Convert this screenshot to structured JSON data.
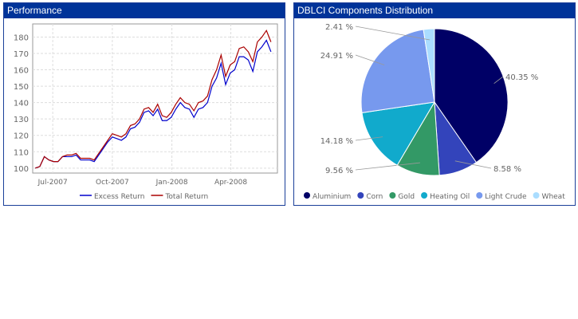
{
  "chart_data": [
    {
      "type": "line",
      "title": "Performance",
      "ylim": [
        97,
        188
      ],
      "yticks": [
        100,
        110,
        120,
        130,
        140,
        150,
        160,
        170,
        180
      ],
      "xticks": [
        {
          "label": "Jul-2007",
          "date": "2007-07-01"
        },
        {
          "label": "Oct-2007",
          "date": "2007-10-01"
        },
        {
          "label": "Jan-2008",
          "date": "2008-01-01"
        },
        {
          "label": "Apr-2008",
          "date": "2008-04-01"
        }
      ],
      "xlim": [
        "2007-05-31",
        "2008-06-12"
      ],
      "grid": true,
      "legend": "bottom",
      "dates": [
        "2007-06-04",
        "2007-06-11",
        "2007-06-18",
        "2007-06-25",
        "2007-07-02",
        "2007-07-09",
        "2007-07-16",
        "2007-07-23",
        "2007-07-30",
        "2007-08-06",
        "2007-08-13",
        "2007-08-20",
        "2007-08-27",
        "2007-09-03",
        "2007-09-10",
        "2007-09-17",
        "2007-09-24",
        "2007-10-01",
        "2007-10-08",
        "2007-10-15",
        "2007-10-22",
        "2007-10-29",
        "2007-11-05",
        "2007-11-12",
        "2007-11-19",
        "2007-11-26",
        "2007-12-03",
        "2007-12-10",
        "2007-12-17",
        "2007-12-24",
        "2007-12-31",
        "2008-01-07",
        "2008-01-14",
        "2008-01-21",
        "2008-01-28",
        "2008-02-04",
        "2008-02-11",
        "2008-02-18",
        "2008-02-25",
        "2008-03-03",
        "2008-03-10",
        "2008-03-17",
        "2008-03-24",
        "2008-03-31",
        "2008-04-07",
        "2008-04-14",
        "2008-04-21",
        "2008-04-28",
        "2008-05-05",
        "2008-05-12",
        "2008-05-19",
        "2008-05-26",
        "2008-06-02"
      ],
      "series": [
        {
          "name": "Excess Return",
          "color": "#0000cc",
          "values": [
            100,
            101,
            107,
            105,
            104,
            104,
            107,
            107,
            107,
            108,
            105,
            105,
            105,
            104,
            108,
            112,
            116,
            119,
            118,
            117,
            119,
            124,
            125,
            128,
            134,
            135,
            132,
            136,
            129,
            129,
            131,
            136,
            140,
            137,
            136,
            131,
            136,
            137,
            140,
            150,
            155,
            164,
            151,
            158,
            160,
            168,
            168,
            166,
            159,
            171,
            174,
            178,
            171
          ]
        },
        {
          "name": "Total Return",
          "color": "#aa0000",
          "values": [
            100,
            101,
            107,
            105,
            104,
            104,
            107,
            108,
            108,
            109,
            106,
            106,
            106,
            105,
            109,
            113,
            117,
            121,
            120,
            119,
            121,
            126,
            127,
            130,
            136,
            137,
            134,
            139,
            132,
            131,
            134,
            139,
            143,
            140,
            139,
            135,
            140,
            141,
            144,
            154,
            160,
            169,
            156,
            163,
            165,
            173,
            174,
            171,
            165,
            177,
            180,
            184,
            177
          ]
        }
      ]
    },
    {
      "type": "pie",
      "title": "DBLCI Components Distribution",
      "legend": "bottom",
      "slices": [
        {
          "name": "Aluminium",
          "value": 40.35,
          "label": "40.35 %",
          "color": "#000066"
        },
        {
          "name": "Corn",
          "value": 8.58,
          "label": "8.58 %",
          "color": "#3344bb"
        },
        {
          "name": "Gold",
          "value": 9.56,
          "label": "9.56 %",
          "color": "#339966"
        },
        {
          "name": "Heating Oil",
          "value": 14.18,
          "label": "14.18 %",
          "color": "#11aacc"
        },
        {
          "name": "Light Crude",
          "value": 24.91,
          "label": "24.91 %",
          "color": "#7799ee"
        },
        {
          "name": "Wheat",
          "value": 2.41,
          "label": "2.41 %",
          "color": "#aaddff"
        }
      ]
    }
  ]
}
